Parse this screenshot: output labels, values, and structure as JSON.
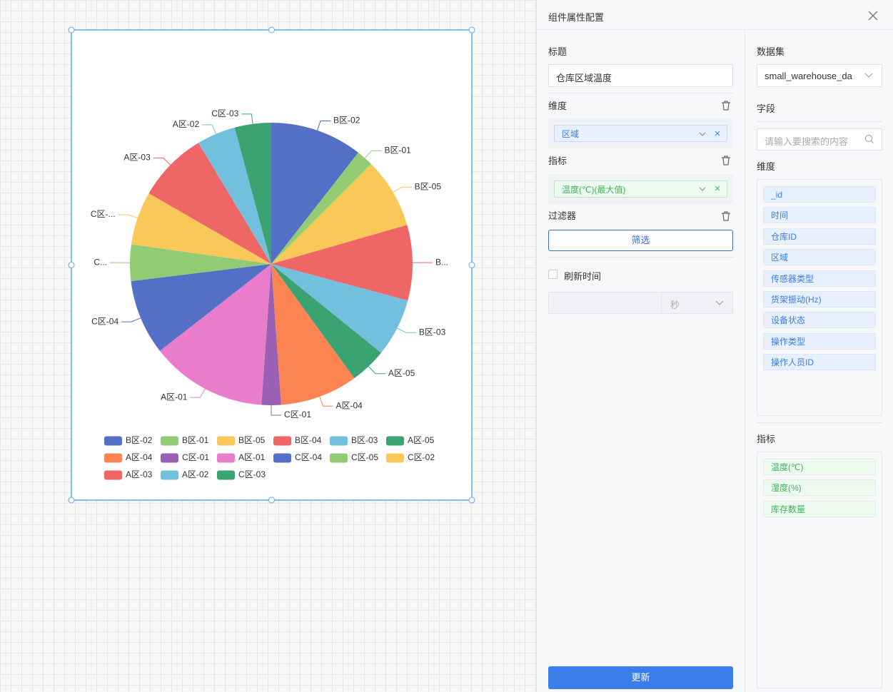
{
  "chart_data": {
    "type": "pie",
    "categories": [
      "B区-02",
      "B区-01",
      "B区-05",
      "B区-04",
      "B区-03",
      "A区-05",
      "A区-04",
      "C区-01",
      "A区-01",
      "C区-04",
      "C区-05",
      "C区-02",
      "A区-03",
      "A区-02",
      "C区-03"
    ],
    "values": [
      38,
      7,
      29,
      31,
      24,
      15,
      32,
      8,
      48,
      31,
      15,
      22,
      29,
      16,
      15
    ],
    "outer_labels": [
      "B区-02",
      "B区-01",
      "B区-05",
      "B...",
      "B区-03",
      "A区-05",
      "A区-04",
      "C区-01",
      "A区-01",
      "C区-04",
      "C...",
      "C区-...",
      "A区-03",
      "A区-02",
      "C区-03"
    ],
    "colors": [
      "#5470c6",
      "#91cc75",
      "#fac858",
      "#ee6666",
      "#73c0de",
      "#3ba272",
      "#fc8452",
      "#9a60b4",
      "#ea7ccc",
      "#5470c6",
      "#91cc75",
      "#fac858",
      "#ee6666",
      "#73c0de",
      "#3ba272"
    ],
    "legend": "bottom"
  },
  "panel": {
    "title": "组件属性配置",
    "config": {
      "title_label": "标题",
      "title_value": "仓库区域温度",
      "dimension_label": "维度",
      "dimension_tag": "区域",
      "measure_label": "指标",
      "measure_tag": "温度(℃)(最大值)",
      "filter_label": "过滤器",
      "filter_button": "筛选",
      "refresh_label": "刷新时间",
      "refresh_unit": "秒",
      "update_button": "更新"
    },
    "fields": {
      "dataset_label": "数据集",
      "dataset_value": "small_warehouse_da",
      "fields_label": "字段",
      "search_placeholder": "请输入要搜索的内容",
      "dimensions_label": "维度",
      "dimensions": [
        "_id",
        "时间",
        "仓库ID",
        "区域",
        "传感器类型",
        "货架振动(Hz)",
        "设备状态",
        "操作类型",
        "操作人员ID"
      ],
      "measures_label": "指标",
      "measures": [
        "温度(℃)",
        "湿度(%)",
        "库存数量"
      ]
    }
  }
}
